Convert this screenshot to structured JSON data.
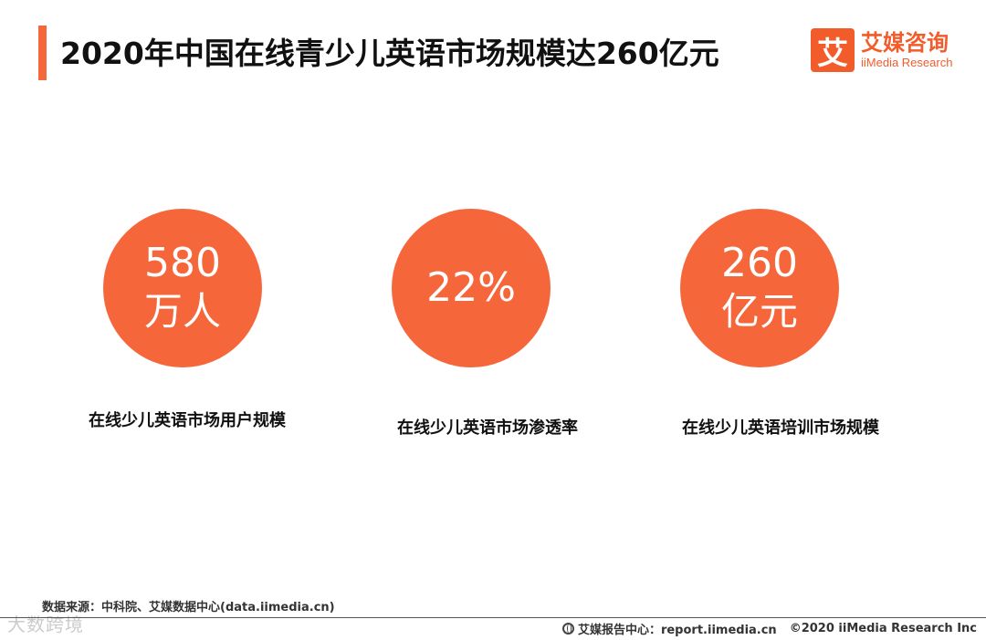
{
  "header": {
    "title": "2020年中国在线青少儿英语市场规模达260亿元",
    "accent_color": "#f4683b"
  },
  "logo": {
    "mark": "艾",
    "cn_name": "艾媒咨询",
    "en_name": "iiMedia Research",
    "color": "#f25c2b"
  },
  "stats": [
    {
      "value": "580",
      "unit": "万人",
      "label": "在线少儿英语市场用户规模"
    },
    {
      "value": "22%",
      "unit": "",
      "label": "在线少儿英语市场渗透率"
    },
    {
      "value": "260",
      "unit": "亿元",
      "label": "在线少儿英语培训市场规模"
    }
  ],
  "source": "数据来源：中科院、艾媒数据中心(data.iimedia.cn)",
  "footer": {
    "report_center": "艾媒报告中心：report.iimedia.cn",
    "copyright": "©2020  iiMedia Research  Inc"
  },
  "watermark": "大数跨境"
}
